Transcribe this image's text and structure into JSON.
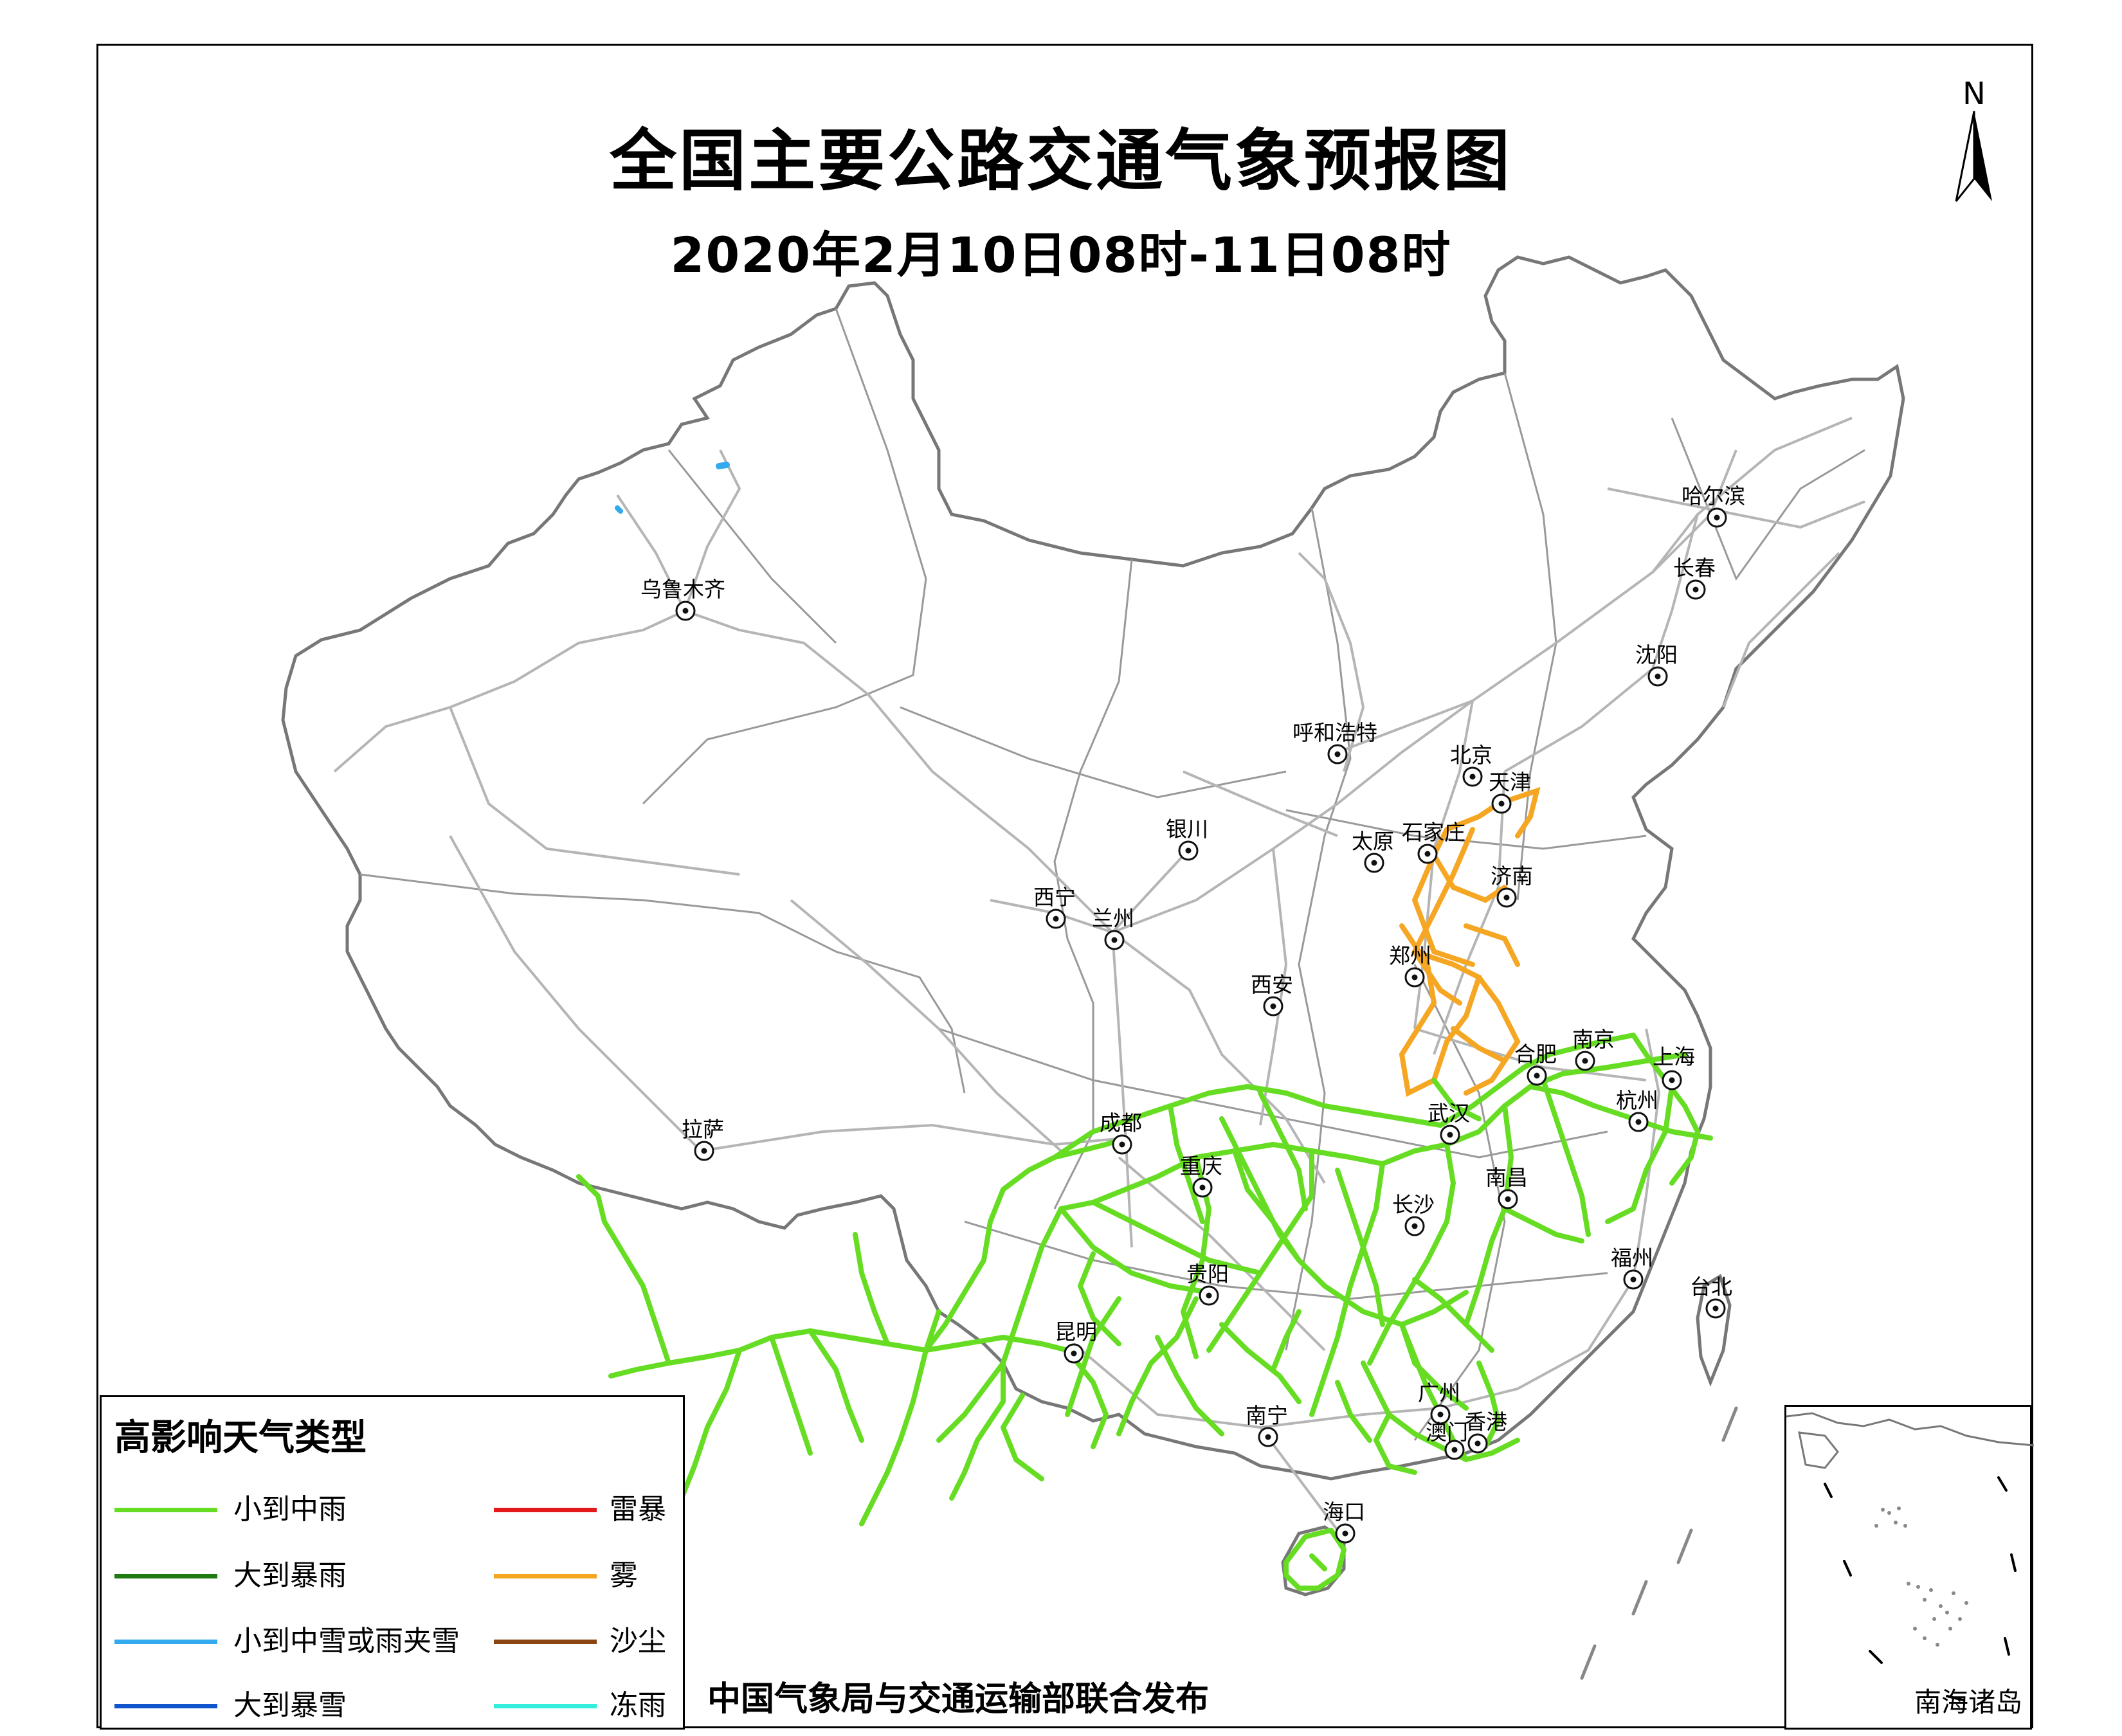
{
  "title": "全国主要公路交通气象预报图",
  "subtitle": "2020年2月10日08时-11日08时",
  "north_label": "N",
  "publisher": "中国气象局与交通运输部联合发布",
  "inset_label": "南海诸岛",
  "legend": {
    "title": "高影响天气类型",
    "items": [
      {
        "label": "小到中雨",
        "color": "#66dd22"
      },
      {
        "label": "大到暴雨",
        "color": "#1f7a12"
      },
      {
        "label": "小到中雪或雨夹雪",
        "color": "#33aaee"
      },
      {
        "label": "大到暴雪",
        "color": "#1155cc"
      },
      {
        "label": "雷暴",
        "color": "#e31a1c"
      },
      {
        "label": "雾",
        "color": "#f5a623"
      },
      {
        "label": "沙尘",
        "color": "#8b4513"
      },
      {
        "label": "冻雨",
        "color": "#33eedd"
      }
    ]
  },
  "cities": [
    {
      "name": "哈尔滨"
    },
    {
      "name": "长春"
    },
    {
      "name": "沈阳"
    },
    {
      "name": "乌鲁木齐"
    },
    {
      "name": "呼和浩特"
    },
    {
      "name": "北京"
    },
    {
      "name": "天津"
    },
    {
      "name": "银川"
    },
    {
      "name": "太原"
    },
    {
      "name": "石家庄"
    },
    {
      "name": "济南"
    },
    {
      "name": "西宁"
    },
    {
      "name": "兰州"
    },
    {
      "name": "郑州"
    },
    {
      "name": "西安"
    },
    {
      "name": "合肥"
    },
    {
      "name": "南京"
    },
    {
      "name": "上海"
    },
    {
      "name": "拉萨"
    },
    {
      "name": "成都"
    },
    {
      "name": "武汉"
    },
    {
      "name": "杭州"
    },
    {
      "name": "重庆"
    },
    {
      "name": "南昌"
    },
    {
      "name": "长沙"
    },
    {
      "name": "福州"
    },
    {
      "name": "贵阳"
    },
    {
      "name": "台北"
    },
    {
      "name": "昆明"
    },
    {
      "name": "广州"
    },
    {
      "name": "南宁"
    },
    {
      "name": "澳门"
    },
    {
      "name": "香港"
    },
    {
      "name": "海口"
    }
  ]
}
